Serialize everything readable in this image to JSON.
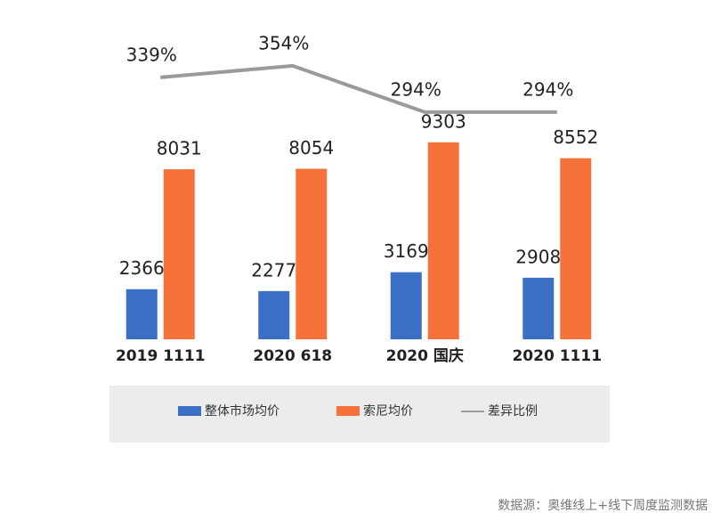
{
  "chart_data": {
    "type": "bar",
    "categories": [
      "2019 1111",
      "2020 618",
      "2020 国庆",
      "2020 1111"
    ],
    "series": [
      {
        "name": "整体市场均价",
        "color": "#3b6fc6",
        "values": [
          2366,
          2277,
          3169,
          2908
        ]
      },
      {
        "name": "索尼均价",
        "color": "#f5733a",
        "values": [
          8031,
          8054,
          9303,
          8552
        ]
      },
      {
        "name": "差异比例",
        "type": "line",
        "axis": "y2",
        "color": "#9a9a9a",
        "values": [
          339,
          354,
          294,
          294
        ],
        "value_labels": [
          "339%",
          "354%",
          "294%",
          "294%"
        ]
      }
    ],
    "ylim": [
      0,
      13500
    ],
    "y2lim": [
      0,
      370
    ],
    "source": "数据源：奥维线上+线下周度监测数据"
  }
}
